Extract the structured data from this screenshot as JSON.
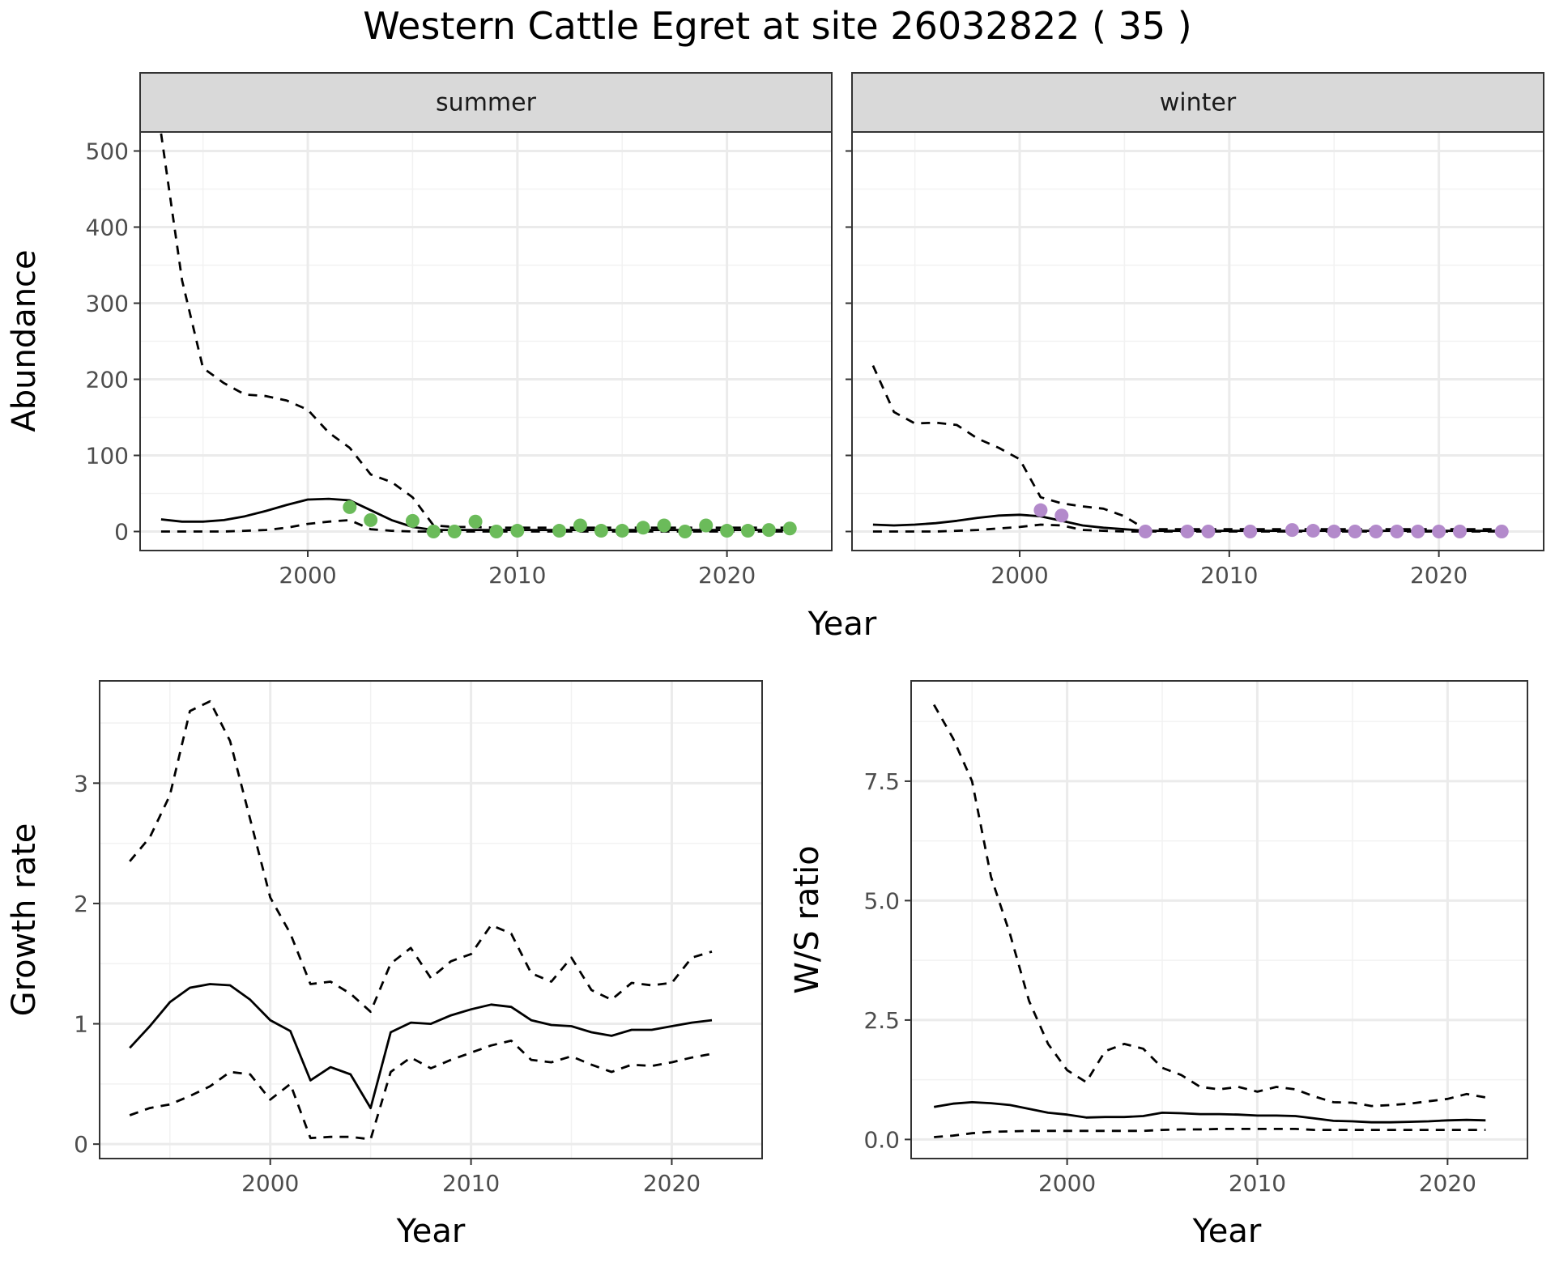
{
  "title": "Western Cattle Egret at site 26032822 ( 35 )",
  "colors": {
    "summer_points": "#6bbb5a",
    "winter_points": "#b38acb",
    "strip_fill": "#d9d9d9",
    "line": "#000000",
    "grid_major": "#ebebeb",
    "grid_minor": "#f2f2f2"
  },
  "chart_data": [
    {
      "type": "line",
      "panel": "summer",
      "strip_label": "summer",
      "xlabel": "Year",
      "ylabel": "Abundance",
      "xlim": [
        1992,
        2025
      ],
      "ylim": [
        -25,
        525
      ],
      "xticks": [
        2000,
        2010,
        2020
      ],
      "xtick_labels": [
        "2000",
        "2010",
        "2020"
      ],
      "yticks": [
        0,
        100,
        200,
        300,
        400,
        500
      ],
      "ytick_labels": [
        "0",
        "100",
        "200",
        "300",
        "400",
        "500"
      ],
      "grid": true,
      "series": [
        {
          "style": "solid",
          "x": [
            1993,
            1994,
            1995,
            1996,
            1997,
            1998,
            1999,
            2000,
            2001,
            2002,
            2003,
            2004,
            2005,
            2006,
            2007,
            2008,
            2009,
            2010,
            2011,
            2012,
            2013,
            2014,
            2015,
            2016,
            2017,
            2018,
            2019,
            2020,
            2021,
            2022,
            2023
          ],
          "y": [
            16,
            13,
            13,
            15,
            20,
            27,
            35,
            42,
            43,
            41,
            28,
            15,
            6,
            2,
            2,
            2,
            2,
            2,
            2,
            2,
            2,
            2,
            2,
            2,
            2,
            2,
            2,
            2,
            2,
            2,
            2
          ]
        },
        {
          "style": "dashed",
          "x": [
            1993,
            1994,
            1995,
            1996,
            1997,
            1998,
            1999,
            2000,
            2001,
            2002,
            2003,
            2004,
            2005,
            2006,
            2007,
            2008,
            2009,
            2010,
            2011,
            2012,
            2013,
            2014,
            2015,
            2016,
            2017,
            2018,
            2019,
            2020,
            2021,
            2022,
            2023
          ],
          "y": [
            523,
            330,
            215,
            195,
            180,
            178,
            172,
            160,
            130,
            110,
            75,
            65,
            45,
            8,
            6,
            6,
            5,
            5,
            5,
            5,
            5,
            5,
            5,
            5,
            5,
            5,
            5,
            5,
            5,
            5,
            5
          ]
        },
        {
          "style": "dashed",
          "x": [
            1993,
            1994,
            1995,
            1996,
            1997,
            1998,
            1999,
            2000,
            2001,
            2002,
            2003,
            2004,
            2005,
            2006,
            2007,
            2008,
            2009,
            2010,
            2011,
            2012,
            2013,
            2014,
            2015,
            2016,
            2017,
            2018,
            2019,
            2020,
            2021,
            2022,
            2023
          ],
          "y": [
            0,
            0,
            0,
            0,
            1,
            2,
            5,
            10,
            13,
            15,
            3,
            1,
            0,
            0,
            0,
            0,
            0,
            0,
            0,
            0,
            0,
            0,
            0,
            0,
            0,
            0,
            0,
            0,
            0,
            0,
            0
          ]
        },
        {
          "style": "points",
          "x": [
            2002,
            2003,
            2005,
            2006,
            2007,
            2008,
            2009,
            2010,
            2012,
            2013,
            2014,
            2015,
            2016,
            2017,
            2018,
            2019,
            2020,
            2021,
            2022,
            2023
          ],
          "y": [
            32,
            15,
            14,
            0,
            0,
            13,
            0,
            1,
            1,
            8,
            1,
            1,
            5,
            8,
            0,
            8,
            1,
            1,
            2,
            4
          ]
        }
      ]
    },
    {
      "type": "line",
      "panel": "winter",
      "strip_label": "winter",
      "xlabel": "Year",
      "ylabel": "Abundance",
      "xlim": [
        1992,
        2025
      ],
      "ylim": [
        -25,
        525
      ],
      "xticks": [
        2000,
        2010,
        2020
      ],
      "xtick_labels": [
        "2000",
        "2010",
        "2020"
      ],
      "yticks": [
        0,
        100,
        200,
        300,
        400,
        500
      ],
      "ytick_labels": [],
      "grid": true,
      "series": [
        {
          "style": "solid",
          "x": [
            1993,
            1994,
            1995,
            1996,
            1997,
            1998,
            1999,
            2000,
            2001,
            2002,
            2003,
            2004,
            2005,
            2006,
            2007,
            2008,
            2009,
            2010,
            2011,
            2012,
            2013,
            2014,
            2015,
            2016,
            2017,
            2018,
            2019,
            2020,
            2021,
            2022,
            2023
          ],
          "y": [
            9,
            8,
            9,
            11,
            14,
            18,
            21,
            22,
            20,
            14,
            8,
            5,
            3,
            1,
            1,
            1,
            1,
            1,
            1,
            1,
            1,
            1,
            1,
            1,
            1,
            1,
            1,
            1,
            1,
            1,
            1
          ]
        },
        {
          "style": "dashed",
          "x": [
            1993,
            1994,
            1995,
            1996,
            1997,
            1998,
            1999,
            2000,
            2001,
            2002,
            2003,
            2004,
            2005,
            2006,
            2007,
            2008,
            2009,
            2010,
            2011,
            2012,
            2013,
            2014,
            2015,
            2016,
            2017,
            2018,
            2019,
            2020,
            2021,
            2022,
            2023
          ],
          "y": [
            218,
            157,
            142,
            143,
            140,
            122,
            110,
            95,
            45,
            37,
            33,
            30,
            20,
            3,
            3,
            3,
            3,
            3,
            3,
            3,
            3,
            3,
            3,
            3,
            3,
            3,
            3,
            3,
            3,
            3,
            3
          ]
        },
        {
          "style": "dashed",
          "x": [
            1993,
            1994,
            1995,
            1996,
            1997,
            1998,
            1999,
            2000,
            2001,
            2002,
            2003,
            2004,
            2005,
            2006,
            2007,
            2008,
            2009,
            2010,
            2011,
            2012,
            2013,
            2014,
            2015,
            2016,
            2017,
            2018,
            2019,
            2020,
            2021,
            2022,
            2023
          ],
          "y": [
            0,
            0,
            0,
            0,
            1,
            2,
            4,
            6,
            9,
            8,
            2,
            1,
            0,
            0,
            0,
            0,
            0,
            0,
            0,
            0,
            0,
            0,
            0,
            0,
            0,
            0,
            0,
            0,
            0,
            0,
            0
          ]
        },
        {
          "style": "points",
          "x": [
            2001,
            2002,
            2006,
            2008,
            2009,
            2011,
            2013,
            2014,
            2015,
            2016,
            2017,
            2018,
            2019,
            2020,
            2021,
            2023
          ],
          "y": [
            28,
            21,
            0,
            0,
            0,
            0,
            2,
            1,
            0,
            0,
            0,
            0,
            0,
            0,
            0,
            0
          ]
        }
      ]
    },
    {
      "type": "line",
      "panel": "growth",
      "strip_label": "",
      "xlabel": "Year",
      "ylabel": "Growth rate",
      "xlim": [
        1991.5,
        2024.5
      ],
      "ylim": [
        -0.12,
        3.85
      ],
      "xticks": [
        2000,
        2010,
        2020
      ],
      "xtick_labels": [
        "2000",
        "2010",
        "2020"
      ],
      "yticks": [
        0,
        1,
        2,
        3
      ],
      "ytick_labels": [
        "0",
        "1",
        "2",
        "3"
      ],
      "grid": true,
      "series": [
        {
          "style": "solid",
          "x": [
            1993,
            1994,
            1995,
            1996,
            1997,
            1998,
            1999,
            2000,
            2001,
            2002,
            2003,
            2004,
            2005,
            2006,
            2007,
            2008,
            2009,
            2010,
            2011,
            2012,
            2013,
            2014,
            2015,
            2016,
            2017,
            2018,
            2019,
            2020,
            2021,
            2022
          ],
          "y": [
            0.8,
            0.98,
            1.18,
            1.3,
            1.33,
            1.32,
            1.2,
            1.03,
            0.94,
            0.53,
            0.64,
            0.58,
            0.3,
            0.93,
            1.01,
            1.0,
            1.07,
            1.12,
            1.16,
            1.14,
            1.03,
            0.99,
            0.98,
            0.93,
            0.9,
            0.95,
            0.95,
            0.98,
            1.01,
            1.03
          ]
        },
        {
          "style": "dashed",
          "x": [
            1993,
            1994,
            1995,
            1996,
            1997,
            1998,
            1999,
            2000,
            2001,
            2002,
            2003,
            2004,
            2005,
            2006,
            2007,
            2008,
            2009,
            2010,
            2011,
            2012,
            2013,
            2014,
            2015,
            2016,
            2017,
            2018,
            2019,
            2020,
            2021,
            2022
          ],
          "y": [
            2.35,
            2.55,
            2.9,
            3.6,
            3.68,
            3.35,
            2.7,
            2.05,
            1.75,
            1.33,
            1.35,
            1.25,
            1.1,
            1.5,
            1.63,
            1.38,
            1.52,
            1.58,
            1.82,
            1.75,
            1.42,
            1.35,
            1.55,
            1.28,
            1.2,
            1.34,
            1.32,
            1.34,
            1.55,
            1.6
          ]
        },
        {
          "style": "dashed",
          "x": [
            1993,
            1994,
            1995,
            1996,
            1997,
            1998,
            1999,
            2000,
            2001,
            2002,
            2003,
            2004,
            2005,
            2006,
            2007,
            2008,
            2009,
            2010,
            2011,
            2012,
            2013,
            2014,
            2015,
            2016,
            2017,
            2018,
            2019,
            2020,
            2021,
            2022
          ],
          "y": [
            0.24,
            0.3,
            0.33,
            0.4,
            0.48,
            0.6,
            0.58,
            0.37,
            0.5,
            0.05,
            0.06,
            0.06,
            0.04,
            0.6,
            0.72,
            0.63,
            0.7,
            0.76,
            0.82,
            0.86,
            0.7,
            0.68,
            0.73,
            0.66,
            0.6,
            0.66,
            0.65,
            0.68,
            0.72,
            0.75
          ]
        }
      ]
    },
    {
      "type": "line",
      "panel": "ws_ratio",
      "strip_label": "",
      "xlabel": "Year",
      "ylabel": "W/S ratio",
      "xlim": [
        1991.8,
        2024.2
      ],
      "ylim": [
        -0.4,
        9.6
      ],
      "xticks": [
        2000,
        2010,
        2020
      ],
      "xtick_labels": [
        "2000",
        "2010",
        "2020"
      ],
      "yticks": [
        0,
        2.5,
        5.0,
        7.5
      ],
      "ytick_labels": [
        "0.0",
        "2.5",
        "5.0",
        "7.5"
      ],
      "grid": true,
      "series": [
        {
          "style": "solid",
          "x": [
            1993,
            1994,
            1995,
            1996,
            1997,
            1998,
            1999,
            2000,
            2001,
            2002,
            2003,
            2004,
            2005,
            2006,
            2007,
            2008,
            2009,
            2010,
            2011,
            2012,
            2013,
            2014,
            2015,
            2016,
            2017,
            2018,
            2019,
            2020,
            2021,
            2022
          ],
          "y": [
            0.68,
            0.75,
            0.78,
            0.76,
            0.72,
            0.64,
            0.56,
            0.52,
            0.46,
            0.47,
            0.47,
            0.49,
            0.56,
            0.55,
            0.53,
            0.53,
            0.52,
            0.5,
            0.5,
            0.49,
            0.44,
            0.39,
            0.38,
            0.36,
            0.36,
            0.37,
            0.38,
            0.4,
            0.41,
            0.4
          ]
        },
        {
          "style": "dashed",
          "x": [
            1993,
            1994,
            1995,
            1996,
            1997,
            1998,
            1999,
            2000,
            2001,
            2002,
            2003,
            2004,
            2005,
            2006,
            2007,
            2008,
            2009,
            2010,
            2011,
            2012,
            2013,
            2014,
            2015,
            2016,
            2017,
            2018,
            2019,
            2020,
            2021,
            2022
          ],
          "y": [
            9.1,
            8.4,
            7.5,
            5.5,
            4.3,
            2.9,
            2.0,
            1.45,
            1.2,
            1.85,
            2.0,
            1.9,
            1.5,
            1.35,
            1.1,
            1.05,
            1.1,
            1.0,
            1.1,
            1.05,
            0.9,
            0.78,
            0.77,
            0.7,
            0.72,
            0.75,
            0.8,
            0.85,
            0.95,
            0.88
          ]
        },
        {
          "style": "dashed",
          "x": [
            1993,
            1994,
            1995,
            1996,
            1997,
            1998,
            1999,
            2000,
            2001,
            2002,
            2003,
            2004,
            2005,
            2006,
            2007,
            2008,
            2009,
            2010,
            2011,
            2012,
            2013,
            2014,
            2015,
            2016,
            2017,
            2018,
            2019,
            2020,
            2021,
            2022
          ],
          "y": [
            0.05,
            0.08,
            0.13,
            0.16,
            0.17,
            0.18,
            0.18,
            0.18,
            0.18,
            0.18,
            0.18,
            0.18,
            0.2,
            0.21,
            0.21,
            0.22,
            0.22,
            0.22,
            0.22,
            0.22,
            0.2,
            0.2,
            0.2,
            0.2,
            0.2,
            0.2,
            0.2,
            0.2,
            0.2,
            0.2
          ]
        }
      ]
    }
  ]
}
